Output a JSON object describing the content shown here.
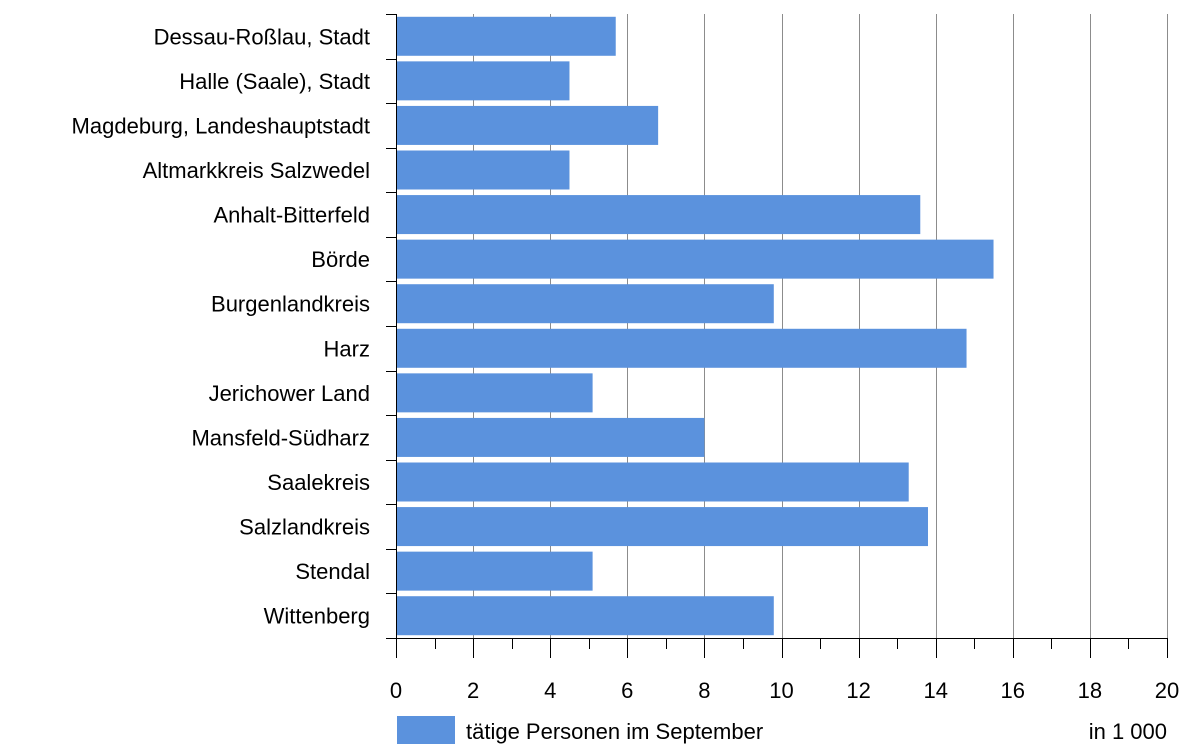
{
  "chart_data": {
    "type": "bar",
    "orientation": "horizontal",
    "categories": [
      "Dessau-Roßlau, Stadt",
      "Halle (Saale), Stadt",
      "Magdeburg, Landeshauptstadt",
      "Altmarkkreis Salzwedel",
      "Anhalt-Bitterfeld",
      "Börde",
      "Burgenlandkreis",
      "Harz",
      "Jerichower Land",
      "Mansfeld-Südharz",
      "Saalekreis",
      "Salzlandkreis",
      "Stendal",
      "Wittenberg"
    ],
    "series": [
      {
        "name": "tätige Personen im September",
        "color": "#5b92dd",
        "values": [
          5.7,
          4.5,
          6.8,
          4.5,
          13.6,
          15.5,
          9.8,
          14.8,
          5.1,
          8.0,
          13.3,
          13.8,
          5.1,
          9.8
        ]
      }
    ],
    "xlim": [
      0,
      20
    ],
    "xticks": [
      "0",
      "2",
      "4",
      "6",
      "8",
      "10",
      "12",
      "14",
      "16",
      "18",
      "20"
    ],
    "grid": true,
    "legend_position": "bottom-left",
    "unit_label": "in 1 000"
  }
}
